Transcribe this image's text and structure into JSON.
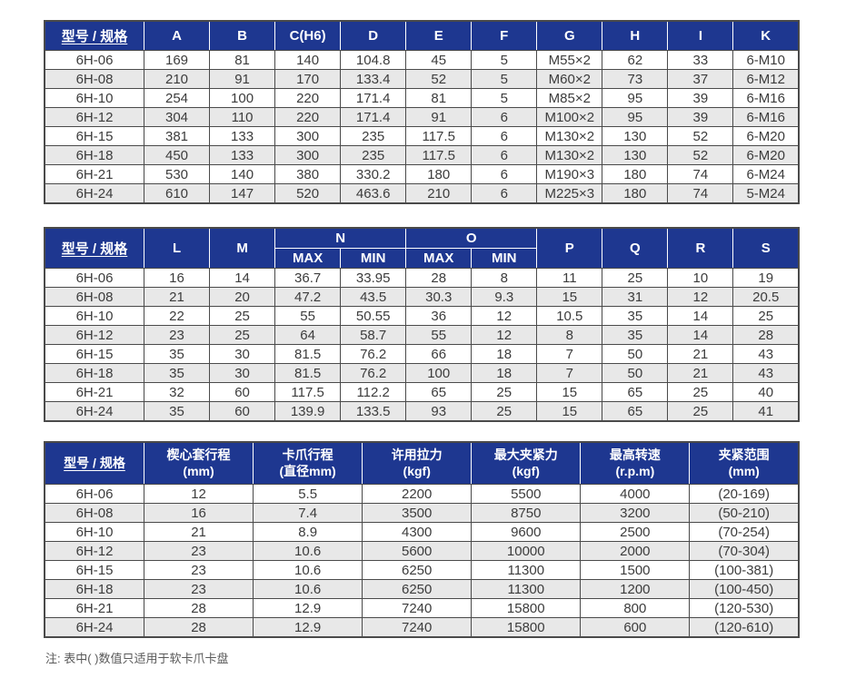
{
  "page": {
    "note": "注: 表中( )数值只适用于软卡爪卡盘"
  },
  "colors": {
    "header_bg": "#1e3790",
    "header_text": "#ffffff",
    "row_bg": "#ffffff",
    "row_alt_bg": "#e8e8e8",
    "border": "#4a4a4a",
    "text": "#3c3c3c"
  },
  "tables": [
    {
      "name": "dimensions-table-a-k",
      "header_rows": [
        [
          {
            "label": "型号 / 规格",
            "model": true
          },
          {
            "label": "A"
          },
          {
            "label": "B"
          },
          {
            "label": "C(H6)"
          },
          {
            "label": "D"
          },
          {
            "label": "E"
          },
          {
            "label": "F"
          },
          {
            "label": "G"
          },
          {
            "label": "H"
          },
          {
            "label": "I"
          },
          {
            "label": "K"
          }
        ]
      ],
      "rows": [
        [
          "6H-06",
          "169",
          "81",
          "140",
          "104.8",
          "45",
          "5",
          "M55×2",
          "62",
          "33",
          "6-M10"
        ],
        [
          "6H-08",
          "210",
          "91",
          "170",
          "133.4",
          "52",
          "5",
          "M60×2",
          "73",
          "37",
          "6-M12"
        ],
        [
          "6H-10",
          "254",
          "100",
          "220",
          "171.4",
          "81",
          "5",
          "M85×2",
          "95",
          "39",
          "6-M16"
        ],
        [
          "6H-12",
          "304",
          "110",
          "220",
          "171.4",
          "91",
          "6",
          "M100×2",
          "95",
          "39",
          "6-M16"
        ],
        [
          "6H-15",
          "381",
          "133",
          "300",
          "235",
          "117.5",
          "6",
          "M130×2",
          "130",
          "52",
          "6-M20"
        ],
        [
          "6H-18",
          "450",
          "133",
          "300",
          "235",
          "117.5",
          "6",
          "M130×2",
          "130",
          "52",
          "6-M20"
        ],
        [
          "6H-21",
          "530",
          "140",
          "380",
          "330.2",
          "180",
          "6",
          "M190×3",
          "180",
          "74",
          "6-M24"
        ],
        [
          "6H-24",
          "610",
          "147",
          "520",
          "463.6",
          "210",
          "6",
          "M225×3",
          "180",
          "74",
          "5-M24"
        ]
      ]
    },
    {
      "name": "dimensions-table-l-s",
      "header_rows": [
        [
          {
            "label": "型号 / 规格",
            "model": true,
            "rowspan": 2
          },
          {
            "label": "L",
            "rowspan": 2
          },
          {
            "label": "M",
            "rowspan": 2
          },
          {
            "label": "N",
            "colspan": 2
          },
          {
            "label": "O",
            "colspan": 2
          },
          {
            "label": "P",
            "rowspan": 2
          },
          {
            "label": "Q",
            "rowspan": 2
          },
          {
            "label": "R",
            "rowspan": 2
          },
          {
            "label": "S",
            "rowspan": 2
          }
        ],
        [
          {
            "label": "MAX"
          },
          {
            "label": "MIN"
          },
          {
            "label": "MAX"
          },
          {
            "label": "MIN"
          }
        ]
      ],
      "rows": [
        [
          "6H-06",
          "16",
          "14",
          "36.7",
          "33.95",
          "28",
          "8",
          "11",
          "25",
          "10",
          "19"
        ],
        [
          "6H-08",
          "21",
          "20",
          "47.2",
          "43.5",
          "30.3",
          "9.3",
          "15",
          "31",
          "12",
          "20.5"
        ],
        [
          "6H-10",
          "22",
          "25",
          "55",
          "50.55",
          "36",
          "12",
          "10.5",
          "35",
          "14",
          "25"
        ],
        [
          "6H-12",
          "23",
          "25",
          "64",
          "58.7",
          "55",
          "12",
          "8",
          "35",
          "14",
          "28"
        ],
        [
          "6H-15",
          "35",
          "30",
          "81.5",
          "76.2",
          "66",
          "18",
          "7",
          "50",
          "21",
          "43"
        ],
        [
          "6H-18",
          "35",
          "30",
          "81.5",
          "76.2",
          "100",
          "18",
          "7",
          "50",
          "21",
          "43"
        ],
        [
          "6H-21",
          "32",
          "60",
          "117.5",
          "112.2",
          "65",
          "25",
          "15",
          "65",
          "25",
          "40"
        ],
        [
          "6H-24",
          "35",
          "60",
          "139.9",
          "133.5",
          "93",
          "25",
          "15",
          "65",
          "25",
          "41"
        ]
      ]
    },
    {
      "name": "performance-table",
      "header_rows": [
        [
          {
            "label": "型号 / 规格",
            "model": true
          },
          {
            "label": "楔心套行程\n(mm)"
          },
          {
            "label": "卡爪行程\n(直径mm)"
          },
          {
            "label": "许用拉力\n(kgf)"
          },
          {
            "label": "最大夹紧力\n(kgf)"
          },
          {
            "label": "最高转速\n(r.p.m)"
          },
          {
            "label": "夹紧范围\n(mm)"
          }
        ]
      ],
      "rows": [
        [
          "6H-06",
          "12",
          "5.5",
          "2200",
          "5500",
          "4000",
          "(20-169)"
        ],
        [
          "6H-08",
          "16",
          "7.4",
          "3500",
          "8750",
          "3200",
          "(50-210)"
        ],
        [
          "6H-10",
          "21",
          "8.9",
          "4300",
          "9600",
          "2500",
          "(70-254)"
        ],
        [
          "6H-12",
          "23",
          "10.6",
          "5600",
          "10000",
          "2000",
          "(70-304)"
        ],
        [
          "6H-15",
          "23",
          "10.6",
          "6250",
          "11300",
          "1500",
          "(100-381)"
        ],
        [
          "6H-18",
          "23",
          "10.6",
          "6250",
          "11300",
          "1200",
          "(100-450)"
        ],
        [
          "6H-21",
          "28",
          "12.9",
          "7240",
          "15800",
          "800",
          "(120-530)"
        ],
        [
          "6H-24",
          "28",
          "12.9",
          "7240",
          "15800",
          "600",
          "(120-610)"
        ]
      ]
    }
  ]
}
